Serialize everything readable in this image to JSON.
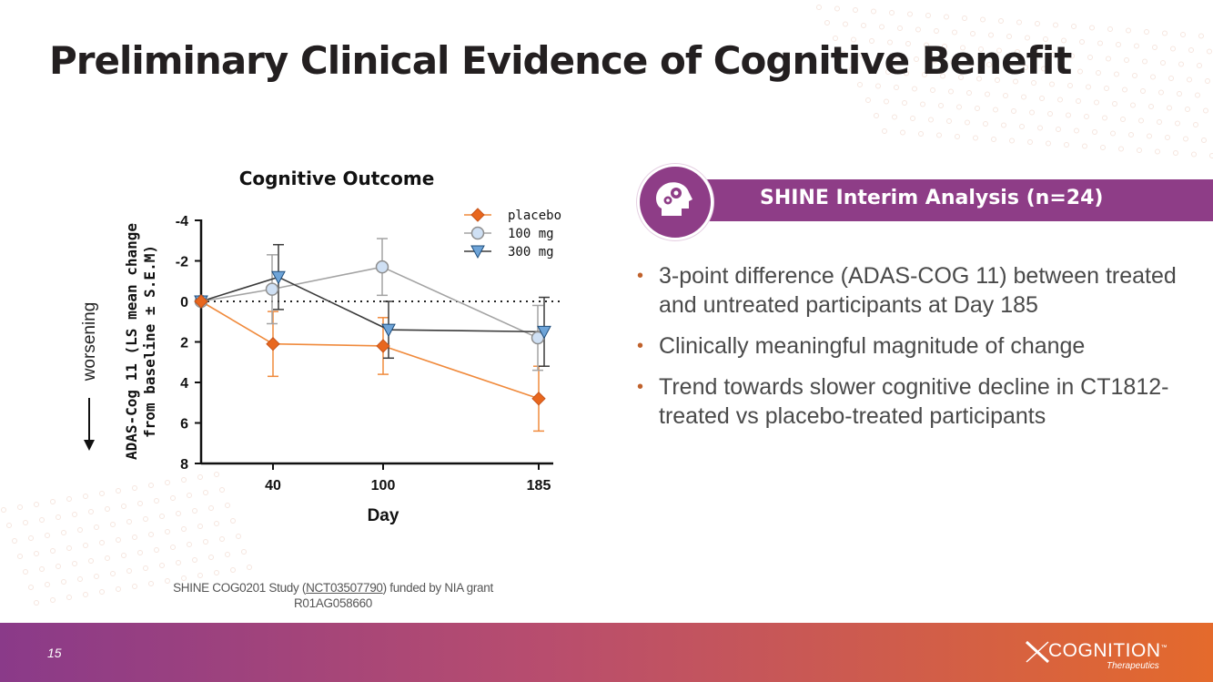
{
  "slide": {
    "title": "Preliminary Clinical Evidence of Cognitive Benefit",
    "page_number": "15"
  },
  "banner": {
    "text": "SHINE Interim Analysis (n=24)",
    "icon": "head-gears-icon"
  },
  "bullets": [
    "3-point difference (ADAS-COG 11) between treated and untreated participants at Day 185",
    "Clinically meaningful magnitude of change",
    "Trend towards slower cognitive decline in CT1812-treated vs placebo-treated participants"
  ],
  "footnote": {
    "prefix": "SHINE COG0201 Study (",
    "link": "NCT03507790",
    "suffix": ") funded by NIA grant R01AG058660"
  },
  "logo": {
    "name": "COGNITION",
    "tm": "™",
    "sub": "Therapeutics"
  },
  "colors": {
    "brand_purple": "#8e3d87",
    "brand_orange": "#e46a2c",
    "placebo": "#e8671e",
    "mg100": "#a3a3a3",
    "mg300": "#3a3a3a"
  },
  "chart_data": {
    "type": "line",
    "title": "Cognitive Outcome",
    "xlabel": "Day",
    "ylabel_lines": [
      "ADAS-Cog 11 (LS mean change",
      "from baseline ± S.E.M)"
    ],
    "direction_label": "worsening",
    "x": [
      0,
      40,
      100,
      185
    ],
    "xticks": [
      40,
      100,
      185
    ],
    "yticks": [
      -4,
      -2,
      0,
      2,
      4,
      6,
      8
    ],
    "ylim": [
      8,
      -4
    ],
    "y_inverted": true,
    "reference_line": 0,
    "series": [
      {
        "name": "placebo",
        "marker": "diamond",
        "values": [
          0,
          2.1,
          2.2,
          4.8
        ],
        "sem": [
          0,
          1.6,
          1.4,
          1.6
        ]
      },
      {
        "name": "100 mg",
        "marker": "circle",
        "values": [
          0,
          -0.6,
          -1.7,
          1.8
        ],
        "sem": [
          0,
          1.7,
          1.4,
          1.6
        ]
      },
      {
        "name": "300 mg",
        "marker": "triangle-down",
        "values": [
          0,
          -1.2,
          1.4,
          1.5
        ],
        "sem": [
          0,
          1.6,
          1.4,
          1.7
        ]
      }
    ]
  }
}
